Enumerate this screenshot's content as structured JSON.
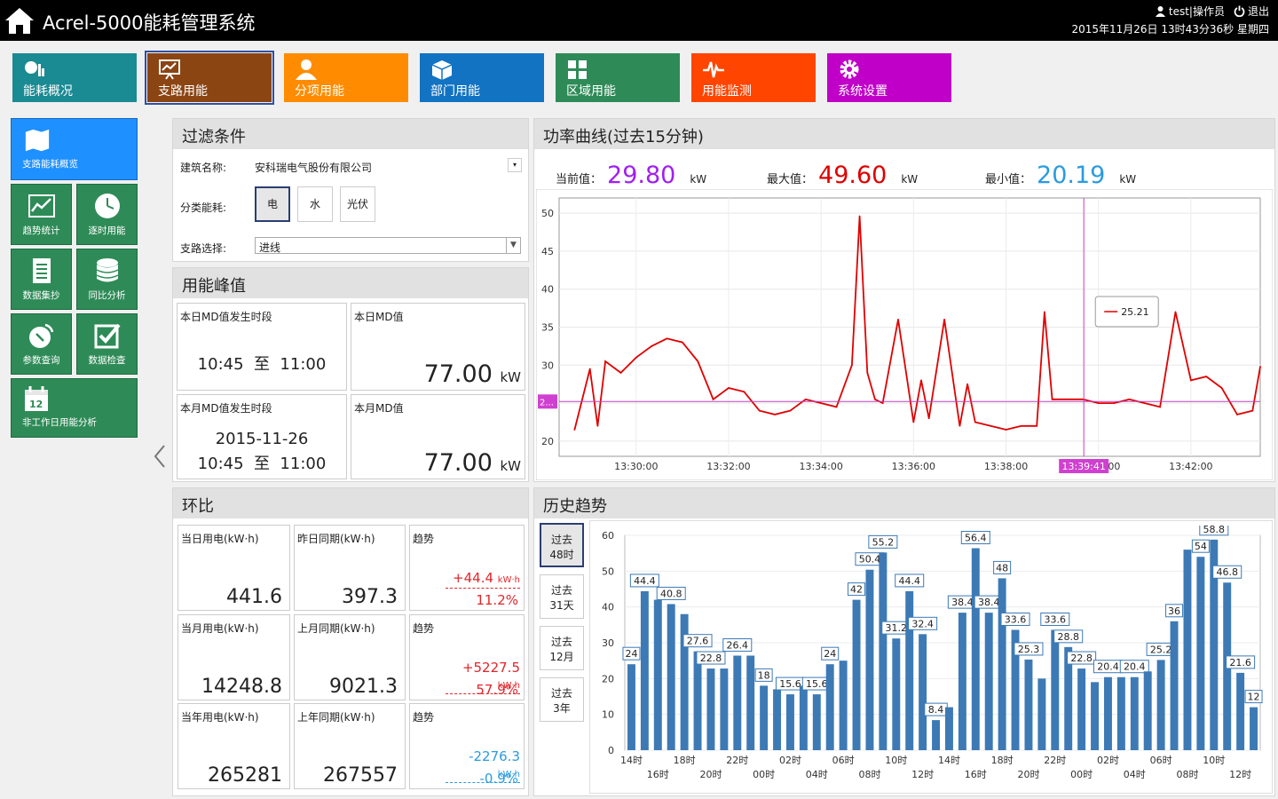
{
  "header": {
    "title": "Acrel-5000能耗管理系统",
    "user": "test|操作员",
    "logout": "退出",
    "datetime": "2015年11月26日 13时43分36秒 星期四"
  },
  "modules": [
    {
      "label": "能耗概况",
      "color": "#1a8a93",
      "icon": "chart-pie-icon"
    },
    {
      "label": "支路用能",
      "color": "#8b4513",
      "icon": "presentation-icon",
      "active": true
    },
    {
      "label": "分项用能",
      "color": "#ff8c00",
      "icon": "user-icon"
    },
    {
      "label": "部门用能",
      "color": "#1273c3",
      "icon": "cube-icon"
    },
    {
      "label": "区域用能",
      "color": "#2e8b57",
      "icon": "grid-icon"
    },
    {
      "label": "用能监测",
      "color": "#ff4500",
      "icon": "pulse-icon"
    },
    {
      "label": "系统设置",
      "color": "#c000c8",
      "icon": "gear-icon"
    }
  ],
  "nav": {
    "top": {
      "label": "支路能耗概览",
      "icon": "map-icon"
    },
    "items": [
      {
        "label": "趋势统计",
        "icon": "trend-icon"
      },
      {
        "label": "逐时用能",
        "icon": "clock-icon"
      },
      {
        "label": "数据集抄",
        "icon": "document-icon"
      },
      {
        "label": "同比分析",
        "icon": "database-icon"
      },
      {
        "label": "参数查询",
        "icon": "satellite-icon"
      },
      {
        "label": "数据检查",
        "icon": "checkbox-icon"
      },
      {
        "label": "非工作日用能分析",
        "icon": "calendar-icon",
        "day": "12"
      }
    ]
  },
  "filter": {
    "title": "过滤条件",
    "building_label": "建筑名称:",
    "building_value": "安科瑞电气股份有限公司",
    "category_label": "分类能耗:",
    "categories": [
      "电",
      "水",
      "光伏"
    ],
    "branch_label": "支路选择:",
    "branch_value": "进线"
  },
  "peak": {
    "title": "用能峰值",
    "day_period_label": "本日MD值发生时段",
    "day_period": "10:45  至  11:00",
    "day_md_label": "本日MD值",
    "day_md": "77.00",
    "month_period_label": "本月MD值发生时段",
    "month_date": "2015-11-26",
    "month_period": "10:45  至  11:00",
    "month_md_label": "本月MD值",
    "month_md": "77.00",
    "unit": "kW"
  },
  "ratio": {
    "title": "环比",
    "rows": [
      {
        "a_label": "当日用电(kW·h)",
        "a": "441.6",
        "b_label": "昨日同期(kW·h)",
        "b": "397.3",
        "t_label": "趋势",
        "t1": "+44.4",
        "t_unit": "kW·h",
        "t2": "11.2%",
        "dir": "up"
      },
      {
        "a_label": "当月用电(kW·h)",
        "a": "14248.8",
        "b_label": "上月同期(kW·h)",
        "b": "9021.3",
        "t_label": "趋势",
        "t1": "+5227.5",
        "t_unit": "kW·h",
        "t2": "57.9%",
        "dir": "up"
      },
      {
        "a_label": "当年用电(kW·h)",
        "a": "265281",
        "b_label": "上年同期(kW·h)",
        "b": "267557",
        "t_label": "趋势",
        "t1": "-2276.3",
        "t_unit": "kW·h",
        "t2": "-0.9%",
        "dir": "down"
      }
    ]
  },
  "power": {
    "title": "功率曲线(过去15分钟)",
    "current_label": "当前值：",
    "current": "29.80",
    "max_label": "最大值：",
    "max": "49.60",
    "min_label": "最小值：",
    "min": "20.19",
    "unit": "kW",
    "current_color": "#a020f0",
    "max_color": "#e00000",
    "min_color": "#2a9be0",
    "tooltip": "25.21",
    "cursor_time": "13:39:41",
    "hline_label": "2..."
  },
  "history": {
    "title": "历史趋势",
    "buttons": [
      {
        "l1": "过去",
        "l2": "48时"
      },
      {
        "l1": "过去",
        "l2": "31天"
      },
      {
        "l1": "过去",
        "l2": "12月"
      },
      {
        "l1": "过去",
        "l2": "3年"
      }
    ]
  },
  "chart_data": [
    {
      "type": "line",
      "x_ticks": [
        "13:30:00",
        "13:32:00",
        "13:34:00",
        "13:36:00",
        "13:38:00",
        "13:40:00",
        "13:42:00"
      ],
      "ylim": [
        18,
        52
      ],
      "y_ticks": [
        20,
        25,
        30,
        35,
        40,
        45,
        50
      ],
      "x": [
        "13:28:40",
        "13:29:00",
        "13:29:10",
        "13:29:20",
        "13:29:40",
        "13:30:00",
        "13:30:20",
        "13:30:40",
        "13:31:00",
        "13:31:20",
        "13:31:40",
        "13:32:00",
        "13:32:20",
        "13:32:40",
        "13:33:00",
        "13:33:20",
        "13:33:40",
        "13:34:00",
        "13:34:20",
        "13:34:40",
        "13:34:50",
        "13:35:00",
        "13:35:10",
        "13:35:20",
        "13:35:40",
        "13:36:00",
        "13:36:10",
        "13:36:20",
        "13:36:40",
        "13:37:00",
        "13:37:10",
        "13:37:20",
        "13:37:40",
        "13:38:00",
        "13:38:20",
        "13:38:40",
        "13:38:50",
        "13:39:00",
        "13:39:20",
        "13:39:40",
        "13:40:00",
        "13:40:20",
        "13:40:40",
        "13:41:00",
        "13:41:20",
        "13:41:40",
        "13:42:00",
        "13:42:20",
        "13:42:40",
        "13:43:00",
        "13:43:20",
        "13:43:30"
      ],
      "series": [
        {
          "color": "#e00000",
          "values": [
            21.5,
            29.5,
            22,
            30.5,
            29,
            31,
            32.5,
            33.5,
            33,
            30.5,
            25.5,
            27,
            26.5,
            24,
            23.5,
            24,
            25.5,
            25,
            24.5,
            30,
            49.6,
            29,
            25.5,
            25,
            36,
            22.5,
            28,
            23,
            36,
            22,
            27.5,
            22.5,
            22,
            21.5,
            22,
            22,
            37,
            25.5,
            25.5,
            25.5,
            25,
            25,
            25.5,
            25,
            24.5,
            37,
            28,
            28.5,
            27,
            23.5,
            24,
            29.8
          ]
        }
      ],
      "reference_line": 25.21
    },
    {
      "type": "bar",
      "ylim": [
        0,
        60
      ],
      "y_ticks": [
        0,
        10,
        20,
        30,
        40,
        50,
        60
      ],
      "x_tick_labels_upper": [
        "14时",
        "18时",
        "22时",
        "02时",
        "06时",
        "10时",
        "14时",
        "18时",
        "22时",
        "02时",
        "06时",
        "10时"
      ],
      "x_tick_labels_lower": [
        "16时",
        "20时",
        "00时",
        "04时",
        "08时",
        "12时",
        "16时",
        "20时",
        "00时",
        "04时",
        "08时",
        "12时"
      ],
      "series": [
        {
          "color": "#3d7ab5",
          "values": [
            24,
            44.4,
            42,
            40.8,
            38,
            27.6,
            22.8,
            22.8,
            26.4,
            26.4,
            18,
            17,
            15.6,
            18,
            15.6,
            24,
            25,
            42,
            50.4,
            55.2,
            31.2,
            44.4,
            32.4,
            8.4,
            12,
            38.4,
            56.4,
            38.4,
            48,
            33.6,
            25.3,
            20,
            33.6,
            28.8,
            22.8,
            19,
            20.4,
            20.4,
            20.4,
            22,
            25.2,
            36,
            56,
            54,
            58.8,
            46.8,
            21.6,
            12
          ]
        }
      ],
      "labeled_values": [
        "24",
        "44.4",
        "40.8",
        "27.6",
        "22.8",
        "26.4",
        "18",
        "15.6",
        "15.6",
        "24",
        "42",
        "50.4",
        "55.2",
        "31.2",
        "44.4",
        "32.4",
        "8.4",
        "38.4",
        "56.4",
        "38.4",
        "48",
        "33.6",
        "25.3",
        "33.6",
        "28.8",
        "22.8",
        "20.4",
        "20.4",
        "25.2",
        "36",
        "54",
        "58.8",
        "46.8",
        "21.6",
        "12"
      ]
    }
  ]
}
